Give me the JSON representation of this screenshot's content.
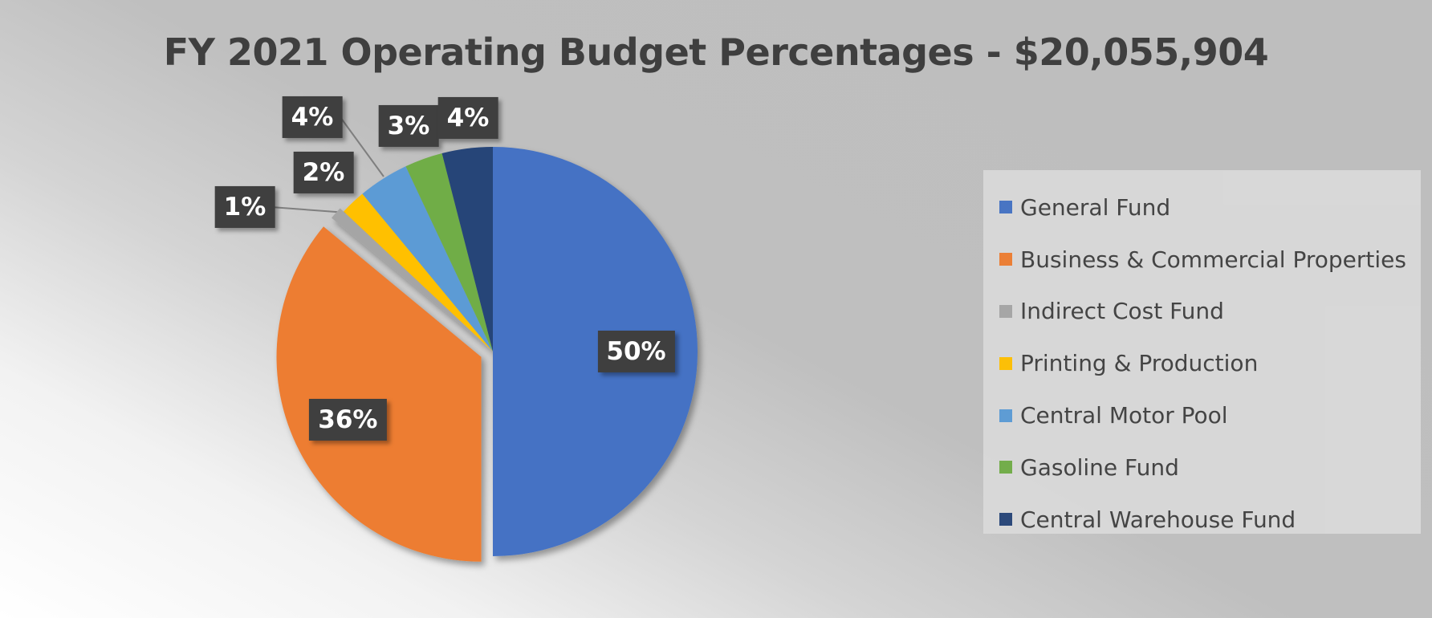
{
  "chart_data": {
    "type": "pie",
    "title": "FY 2021 Operating Budget Percentages - $20,055,904",
    "legend_position": "right",
    "slices": [
      {
        "label": "General Fund",
        "value": 50,
        "display": "50%",
        "color": "#4472C4"
      },
      {
        "label": "Business & Commercial Properties",
        "value": 36,
        "display": "36%",
        "color": "#ED7D31"
      },
      {
        "label": "Indirect Cost Fund",
        "value": 1,
        "display": "1%",
        "color": "#A5A5A5"
      },
      {
        "label": "Printing & Production",
        "value": 2,
        "display": "2%",
        "color": "#FFC000"
      },
      {
        "label": "Central Motor Pool",
        "value": 4,
        "display": "4%",
        "color": "#5B9BD5"
      },
      {
        "label": "Gasoline Fund",
        "value": 3,
        "display": "3%",
        "color": "#70AD47"
      },
      {
        "label": "Central Warehouse Fund",
        "value": 4,
        "display": "4%",
        "color": "#264478"
      }
    ]
  }
}
